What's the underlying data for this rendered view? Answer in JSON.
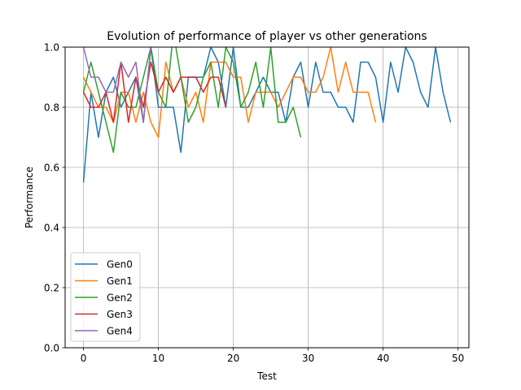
{
  "chart_data": {
    "type": "line",
    "title": "Evolution of performance of player vs other generations",
    "xlabel": "Test",
    "ylabel": "Performance",
    "xlim": [
      -2.45,
      51.45
    ],
    "ylim": [
      0.0,
      1.0
    ],
    "xticks": [
      0,
      10,
      20,
      30,
      40,
      50
    ],
    "yticks": [
      0.0,
      0.2,
      0.4,
      0.6,
      0.8,
      1.0
    ],
    "grid": true,
    "legend_position": "lower-left",
    "series": [
      {
        "name": "Gen0",
        "color": "#1f77b4",
        "x": [
          0,
          1,
          2,
          3,
          4,
          5,
          6,
          7,
          8,
          9,
          10,
          11,
          12,
          13,
          14,
          15,
          16,
          17,
          18,
          19,
          20,
          21,
          22,
          23,
          24,
          25,
          26,
          27,
          28,
          29,
          30,
          31,
          32,
          33,
          34,
          35,
          36,
          37,
          38,
          39,
          40,
          41,
          42,
          43,
          44,
          45,
          46,
          47,
          48,
          49
        ],
        "values": [
          0.55,
          0.85,
          0.7,
          0.85,
          0.9,
          0.8,
          0.85,
          0.9,
          0.75,
          1.0,
          0.8,
          0.8,
          0.8,
          0.65,
          0.9,
          0.9,
          0.9,
          1.0,
          0.95,
          0.8,
          1.0,
          0.8,
          0.8,
          0.85,
          0.9,
          0.85,
          0.85,
          0.75,
          0.9,
          0.95,
          0.8,
          0.95,
          0.85,
          0.85,
          0.8,
          0.8,
          0.75,
          0.95,
          0.95,
          0.9,
          0.75,
          0.95,
          0.85,
          1.0,
          0.95,
          0.85,
          0.8,
          1.0,
          0.85,
          0.75
        ]
      },
      {
        "name": "Gen1",
        "color": "#ff7f0e",
        "x": [
          0,
          1,
          2,
          3,
          4,
          5,
          6,
          7,
          8,
          9,
          10,
          11,
          12,
          13,
          14,
          15,
          16,
          17,
          18,
          19,
          20,
          21,
          22,
          23,
          24,
          25,
          26,
          27,
          28,
          29,
          30,
          31,
          32,
          33,
          34,
          35,
          36,
          37,
          38,
          39
        ],
        "values": [
          0.9,
          0.85,
          0.8,
          0.8,
          0.75,
          0.85,
          0.85,
          0.75,
          0.85,
          0.75,
          0.7,
          0.95,
          0.85,
          0.9,
          0.8,
          0.85,
          0.75,
          0.95,
          0.95,
          0.95,
          0.9,
          0.9,
          0.75,
          0.85,
          0.85,
          0.85,
          0.8,
          0.85,
          0.9,
          0.9,
          0.85,
          0.85,
          0.9,
          1.0,
          0.85,
          0.95,
          0.85,
          0.85,
          0.85,
          0.75
        ]
      },
      {
        "name": "Gen2",
        "color": "#2ca02c",
        "x": [
          0,
          1,
          2,
          3,
          4,
          5,
          6,
          7,
          8,
          9,
          10,
          11,
          12,
          13,
          14,
          15,
          16,
          17,
          18,
          19,
          20,
          21,
          22,
          23,
          24,
          25,
          26,
          27,
          28,
          29
        ],
        "values": [
          0.85,
          0.95,
          0.85,
          0.75,
          0.65,
          0.85,
          0.8,
          0.8,
          0.9,
          1.0,
          0.85,
          0.8,
          1.05,
          0.9,
          0.75,
          0.8,
          0.9,
          0.95,
          0.8,
          1.0,
          0.95,
          0.8,
          0.85,
          0.95,
          0.8,
          1.0,
          0.75,
          0.75,
          0.8,
          0.7
        ]
      },
      {
        "name": "Gen3",
        "color": "#d62728",
        "x": [
          0,
          1,
          2,
          3,
          4,
          5,
          6,
          7,
          8,
          9,
          10,
          11,
          12,
          13,
          14,
          15,
          16,
          17,
          18,
          19
        ],
        "values": [
          0.85,
          0.8,
          0.8,
          0.85,
          0.75,
          0.95,
          0.75,
          0.9,
          0.8,
          0.95,
          0.85,
          0.9,
          0.85,
          0.9,
          0.9,
          0.9,
          0.85,
          0.9,
          0.9,
          0.8
        ]
      },
      {
        "name": "Gen4",
        "color": "#9467bd",
        "x": [
          0,
          1,
          2,
          3,
          4,
          5,
          6,
          7,
          8,
          9
        ],
        "values": [
          1.0,
          0.9,
          0.9,
          0.85,
          0.85,
          0.95,
          0.9,
          0.95,
          0.75,
          1.0
        ]
      }
    ]
  }
}
